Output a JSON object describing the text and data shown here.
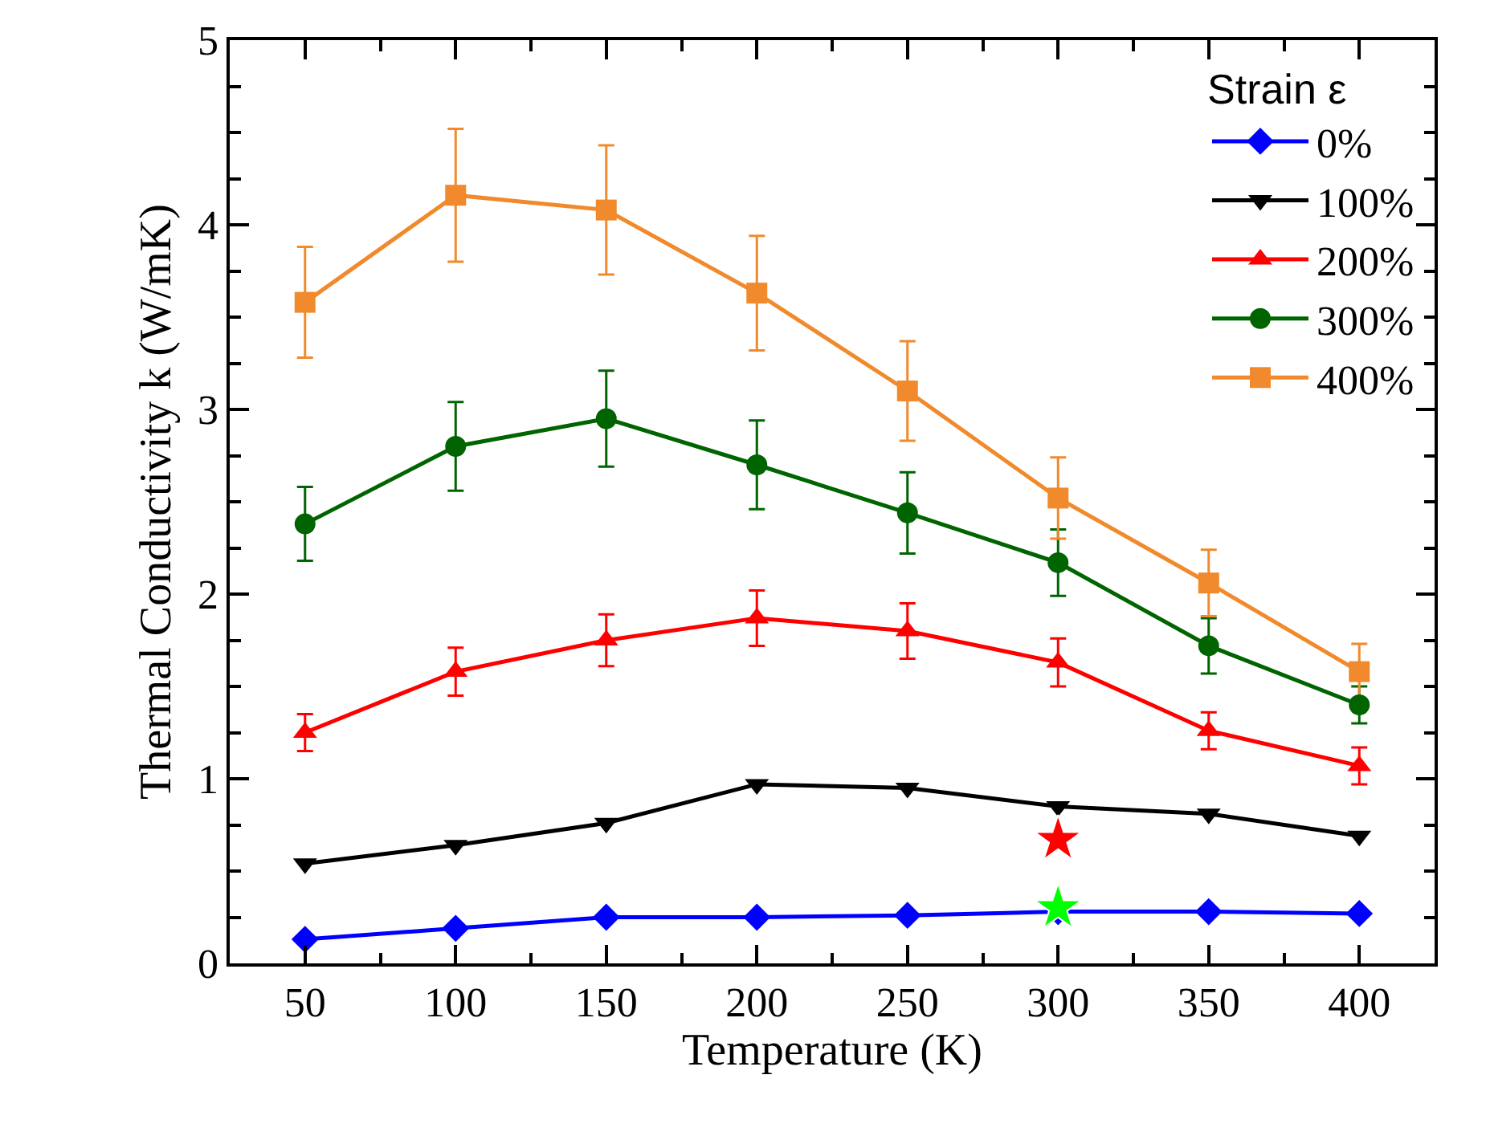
{
  "chart_data": {
    "type": "line",
    "xlabel": "Temperature (K)",
    "ylabel": "Thermal Conductivity k (W/mK)",
    "legend_title": "Strain ε",
    "legend": "top right",
    "grid": false,
    "x": [
      50,
      100,
      150,
      200,
      250,
      300,
      350,
      400
    ],
    "xlim": [
      25,
      425
    ],
    "xticks": [
      50,
      100,
      150,
      200,
      250,
      300,
      350,
      400
    ],
    "ylim": [
      0,
      5
    ],
    "yticks": [
      0,
      1,
      2,
      3,
      4,
      5
    ],
    "series": [
      {
        "name": "0%",
        "color": "#0000ff",
        "marker": "diamond",
        "values": [
          0.13,
          0.19,
          0.25,
          0.25,
          0.26,
          0.28,
          0.28,
          0.27
        ]
      },
      {
        "name": "100%",
        "color": "#000000",
        "marker": "triangle-down",
        "values": [
          0.54,
          0.64,
          0.76,
          0.97,
          0.95,
          0.85,
          0.81,
          0.69
        ]
      },
      {
        "name": "200%",
        "color": "#ff0000",
        "marker": "triangle",
        "values": [
          1.25,
          1.58,
          1.75,
          1.87,
          1.8,
          1.63,
          1.26,
          1.07
        ],
        "errors": [
          0.1,
          0.13,
          0.14,
          0.15,
          0.15,
          0.13,
          0.1,
          0.1
        ]
      },
      {
        "name": "300%",
        "color": "#006400",
        "marker": "circle",
        "values": [
          2.38,
          2.8,
          2.95,
          2.7,
          2.44,
          2.17,
          1.72,
          1.4
        ],
        "errors": [
          0.2,
          0.24,
          0.26,
          0.24,
          0.22,
          0.18,
          0.15,
          0.1
        ]
      },
      {
        "name": "400%",
        "color": "#f08a2c",
        "marker": "square",
        "values": [
          3.58,
          4.16,
          4.08,
          3.63,
          3.1,
          2.52,
          2.06,
          1.58
        ],
        "errors": [
          0.3,
          0.36,
          0.35,
          0.31,
          0.27,
          0.22,
          0.18,
          0.15
        ]
      },
      {
        "type": "scatter",
        "color": "#ff0000",
        "marker": "star",
        "x": [
          300
        ],
        "values": [
          0.67
        ]
      },
      {
        "type": "scatter",
        "color": "#00ff00",
        "marker": "star",
        "x": [
          300
        ],
        "values": [
          0.3
        ]
      }
    ]
  }
}
